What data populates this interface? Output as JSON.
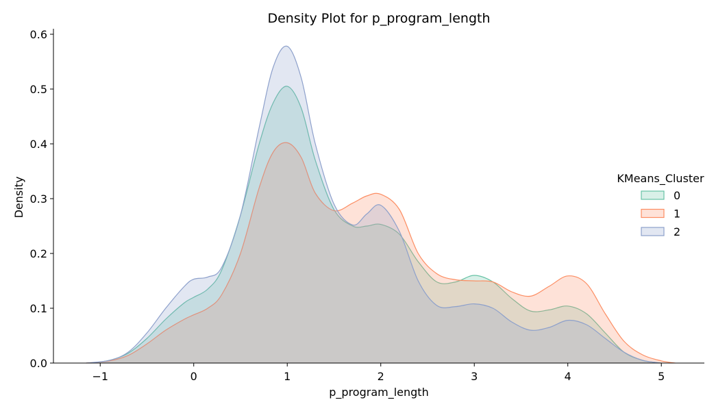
{
  "chart_data": {
    "type": "area",
    "title": "Density Plot for p_program_length",
    "xlabel": "p_program_length",
    "ylabel": "Density",
    "xlim": [
      -1.5,
      5.46
    ],
    "ylim": [
      0,
      0.61
    ],
    "xticks": [
      -1,
      0,
      1,
      2,
      3,
      4,
      5
    ],
    "xtick_labels": [
      "−1",
      "0",
      "1",
      "2",
      "3",
      "4",
      "5"
    ],
    "yticks": [
      0.0,
      0.1,
      0.2,
      0.3,
      0.4,
      0.5,
      0.6
    ],
    "ytick_labels": [
      "0.0",
      "0.1",
      "0.2",
      "0.3",
      "0.4",
      "0.5",
      "0.6"
    ],
    "grid": false,
    "legend": {
      "title": "KMeans_Cluster",
      "placement": "right",
      "entries": [
        "0",
        "1",
        "2"
      ]
    },
    "series": [
      {
        "name": "0",
        "color": "#66c2a5",
        "x": [
          -1.1,
          -0.9,
          -0.7,
          -0.5,
          -0.3,
          -0.1,
          0.0,
          0.15,
          0.3,
          0.5,
          0.7,
          0.85,
          1.0,
          1.15,
          1.3,
          1.5,
          1.7,
          1.85,
          2.0,
          2.2,
          2.4,
          2.6,
          2.8,
          3.0,
          3.2,
          3.4,
          3.6,
          3.8,
          4.0,
          4.2,
          4.4,
          4.6,
          4.8,
          5.0
        ],
        "y": [
          0.0,
          0.005,
          0.018,
          0.045,
          0.08,
          0.11,
          0.12,
          0.135,
          0.17,
          0.27,
          0.4,
          0.475,
          0.505,
          0.465,
          0.37,
          0.28,
          0.25,
          0.25,
          0.253,
          0.235,
          0.185,
          0.148,
          0.148,
          0.16,
          0.148,
          0.118,
          0.095,
          0.097,
          0.104,
          0.09,
          0.055,
          0.02,
          0.005,
          0.0
        ]
      },
      {
        "name": "1",
        "color": "#fc8d62",
        "x": [
          -1.15,
          -0.9,
          -0.7,
          -0.5,
          -0.3,
          -0.1,
          0.0,
          0.15,
          0.3,
          0.5,
          0.7,
          0.85,
          1.0,
          1.15,
          1.3,
          1.5,
          1.7,
          1.85,
          2.0,
          2.2,
          2.4,
          2.6,
          2.8,
          3.0,
          3.2,
          3.4,
          3.6,
          3.8,
          4.0,
          4.2,
          4.4,
          4.6,
          4.8,
          5.0,
          5.15
        ],
        "y": [
          0.0,
          0.004,
          0.014,
          0.035,
          0.06,
          0.08,
          0.088,
          0.1,
          0.125,
          0.2,
          0.32,
          0.385,
          0.402,
          0.375,
          0.31,
          0.278,
          0.292,
          0.305,
          0.308,
          0.28,
          0.2,
          0.163,
          0.152,
          0.15,
          0.148,
          0.13,
          0.122,
          0.14,
          0.159,
          0.145,
          0.09,
          0.04,
          0.015,
          0.004,
          0.0
        ]
      },
      {
        "name": "2",
        "color": "#8da0cb",
        "x": [
          -1.15,
          -0.9,
          -0.7,
          -0.5,
          -0.3,
          -0.1,
          0.0,
          0.15,
          0.3,
          0.5,
          0.7,
          0.85,
          1.0,
          1.15,
          1.3,
          1.5,
          1.7,
          1.85,
          2.0,
          2.2,
          2.4,
          2.6,
          2.8,
          3.0,
          3.2,
          3.4,
          3.6,
          3.8,
          4.0,
          4.2,
          4.4,
          4.6,
          4.8,
          5.0
        ],
        "y": [
          0.0,
          0.005,
          0.02,
          0.055,
          0.1,
          0.14,
          0.153,
          0.157,
          0.175,
          0.27,
          0.43,
          0.54,
          0.578,
          0.52,
          0.4,
          0.29,
          0.252,
          0.272,
          0.288,
          0.24,
          0.15,
          0.105,
          0.103,
          0.108,
          0.1,
          0.075,
          0.06,
          0.065,
          0.078,
          0.07,
          0.045,
          0.02,
          0.005,
          0.0
        ]
      }
    ]
  }
}
